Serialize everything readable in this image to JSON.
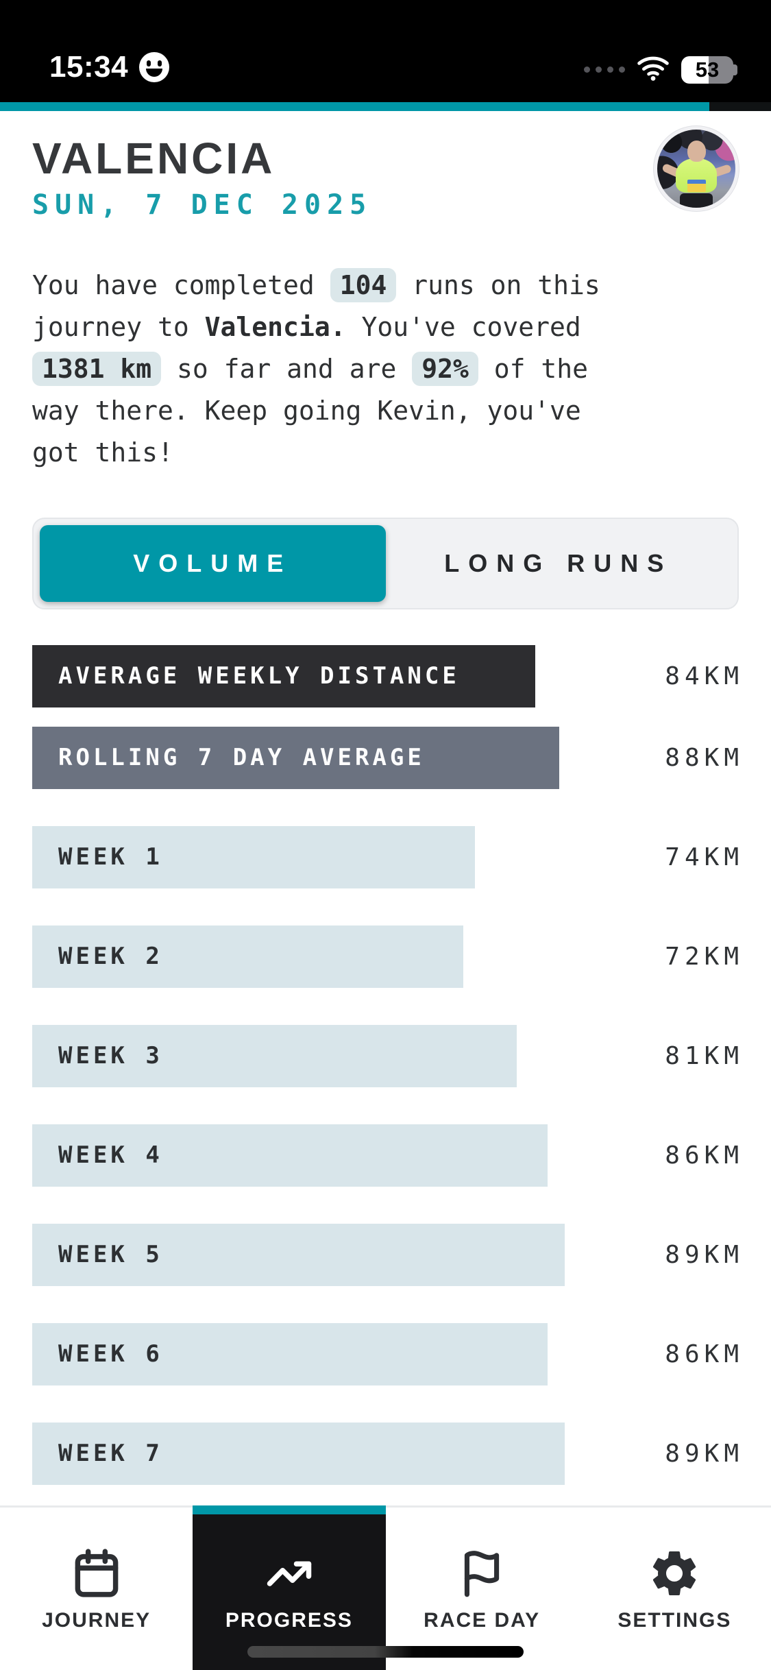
{
  "status_bar": {
    "time": "15:34",
    "battery_percent": "53"
  },
  "journey_progress": {
    "percent": 92
  },
  "header": {
    "title": "VALENCIA",
    "date": "SUN, 7 DEC 2025"
  },
  "summary": {
    "segments": [
      {
        "text": "You have completed ",
        "style": "plain"
      },
      {
        "text": "104",
        "style": "chip"
      },
      {
        "text": " runs on this",
        "style": "plain"
      },
      {
        "text": "",
        "style": "br"
      },
      {
        "text": "journey to ",
        "style": "plain"
      },
      {
        "text": "Valencia.",
        "style": "bold"
      },
      {
        "text": " You've covered",
        "style": "plain"
      },
      {
        "text": "",
        "style": "br"
      },
      {
        "text": "1381 km",
        "style": "chip"
      },
      {
        "text": " so far and are ",
        "style": "plain"
      },
      {
        "text": "92%",
        "style": "chip"
      },
      {
        "text": " of the",
        "style": "plain"
      },
      {
        "text": "",
        "style": "br"
      },
      {
        "text": "way there. Keep going Kevin, you've",
        "style": "plain"
      },
      {
        "text": "",
        "style": "br"
      },
      {
        "text": "got this!",
        "style": "plain"
      }
    ]
  },
  "view_toggle": {
    "options": [
      "VOLUME",
      "LONG RUNS"
    ],
    "selected": "VOLUME"
  },
  "chart_data": {
    "type": "bar",
    "orientation": "horizontal",
    "unit": "KM",
    "xlim": [
      0,
      118
    ],
    "categories": [
      "AVERAGE WEEKLY DISTANCE",
      "ROLLING 7 DAY AVERAGE",
      "WEEK 1",
      "WEEK 2",
      "WEEK 3",
      "WEEK 4",
      "WEEK 5",
      "WEEK 6",
      "WEEK 7"
    ],
    "values": [
      84,
      88,
      74,
      72,
      81,
      86,
      89,
      86,
      89
    ],
    "bars": [
      {
        "label": "AVERAGE WEEKLY DISTANCE",
        "value": 84,
        "variant": "dark"
      },
      {
        "label": "ROLLING 7 DAY AVERAGE",
        "value": 88,
        "variant": "gray"
      },
      {
        "label": "WEEK 1",
        "value": 74,
        "variant": "light"
      },
      {
        "label": "WEEK 2",
        "value": 72,
        "variant": "light"
      },
      {
        "label": "WEEK 3",
        "value": 81,
        "variant": "light"
      },
      {
        "label": "WEEK 4",
        "value": 86,
        "variant": "light"
      },
      {
        "label": "WEEK 5",
        "value": 89,
        "variant": "light"
      },
      {
        "label": "WEEK 6",
        "value": 86,
        "variant": "light"
      },
      {
        "label": "WEEK 7",
        "value": 89,
        "variant": "light"
      }
    ]
  },
  "tab_bar": {
    "items": [
      {
        "label": "JOURNEY",
        "icon": "calendar-icon",
        "active": false
      },
      {
        "label": "PROGRESS",
        "icon": "trending-up-icon",
        "active": true
      },
      {
        "label": "RACE DAY",
        "icon": "flag-icon",
        "active": false
      },
      {
        "label": "SETTINGS",
        "icon": "gear-icon",
        "active": false
      }
    ]
  },
  "colors": {
    "accent": "#0097a7",
    "chip_bg": "#dbe7ea",
    "bar_dark": "#2d2d30",
    "bar_gray": "#6b7280",
    "bar_light": "#d8e5ea"
  }
}
